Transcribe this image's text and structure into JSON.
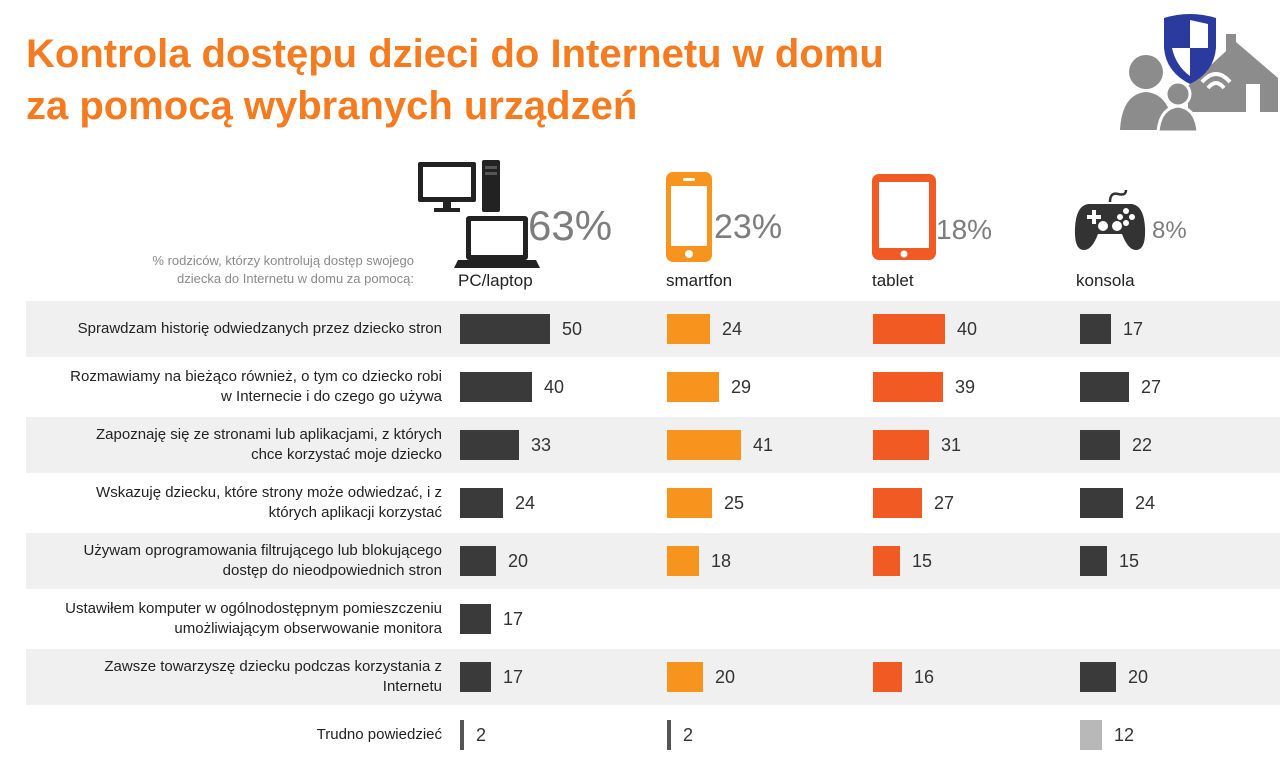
{
  "title_lines": [
    "Kontrola dostępu dzieci do Internetu w domu",
    "za pomocą wybranych urządzeń"
  ],
  "caption_lines": [
    "% rodziców, którzy kontrolują dostęp swojego",
    "dziecka do Internetu w domu za pomocą:"
  ],
  "colors": {
    "title": "#f47b20",
    "pc": "#3a3a3a",
    "smartfon": "#f7941d",
    "tablet": "#f15a22",
    "konsola": "#3a3a3a",
    "difficult": "#b8b8b8",
    "row_band": "#f0f0f0",
    "logo_gray": "#8c8c8c",
    "logo_shield": "#2b3a9e"
  },
  "icons": [
    "pc-laptop-icon",
    "smartphone-icon",
    "tablet-icon",
    "gamepad-icon",
    "family-security-home-icon"
  ],
  "chart_data": {
    "type": "bar",
    "orientation": "horizontal",
    "title": "Kontrola dostępu dzieci do Internetu w domu za pomocą wybranych urządzeń",
    "subtitle": "% rodziców, którzy kontrolują dostęp swojego dziecka do Internetu w domu za pomocą:",
    "unit": "%",
    "categories": [
      [
        "Sprawdzam historię odwiedzanych przez dziecko stron"
      ],
      [
        "Rozmawiamy na bieżąco również, o tym co dziecko robi",
        "w Internecie i do czego go używa"
      ],
      [
        "Zapoznaję się ze stronami lub aplikacjami, z których",
        "chce korzystać moje dziecko"
      ],
      [
        "Wskazuję dziecku, które strony może odwiedzać, i z",
        "których aplikacji korzystać"
      ],
      [
        "Używam oprogramowania filtrującego lub blokującego",
        "dostęp do nieodpowiednich stron"
      ],
      [
        "Ustawiłem komputer w ogólnodostępnym pomieszczeniu",
        "umożliwiającym obserwowanie monitora"
      ],
      [
        "Zawsze towarzyszę dziecku podczas korzystania z",
        "Internetu"
      ],
      [
        "Trudno powiedzieć"
      ]
    ],
    "series": [
      {
        "name": "PC/laptop",
        "total_label": "63%",
        "color": "#3a3a3a",
        "values": [
          50,
          40,
          33,
          24,
          20,
          17,
          17,
          2
        ]
      },
      {
        "name": "smartfon",
        "total_label": "23%",
        "color": "#f7941d",
        "values": [
          24,
          29,
          41,
          25,
          18,
          null,
          20,
          2
        ]
      },
      {
        "name": "tablet",
        "total_label": "18%",
        "color": "#f15a22",
        "values": [
          40,
          39,
          31,
          27,
          15,
          null,
          16,
          null
        ]
      },
      {
        "name": "konsola",
        "total_label": "8%",
        "color": "#3a3a3a",
        "values": [
          17,
          27,
          22,
          24,
          15,
          null,
          20,
          12
        ]
      }
    ],
    "difficult_color": "#b8b8b8",
    "grid": false,
    "legend": "none"
  }
}
